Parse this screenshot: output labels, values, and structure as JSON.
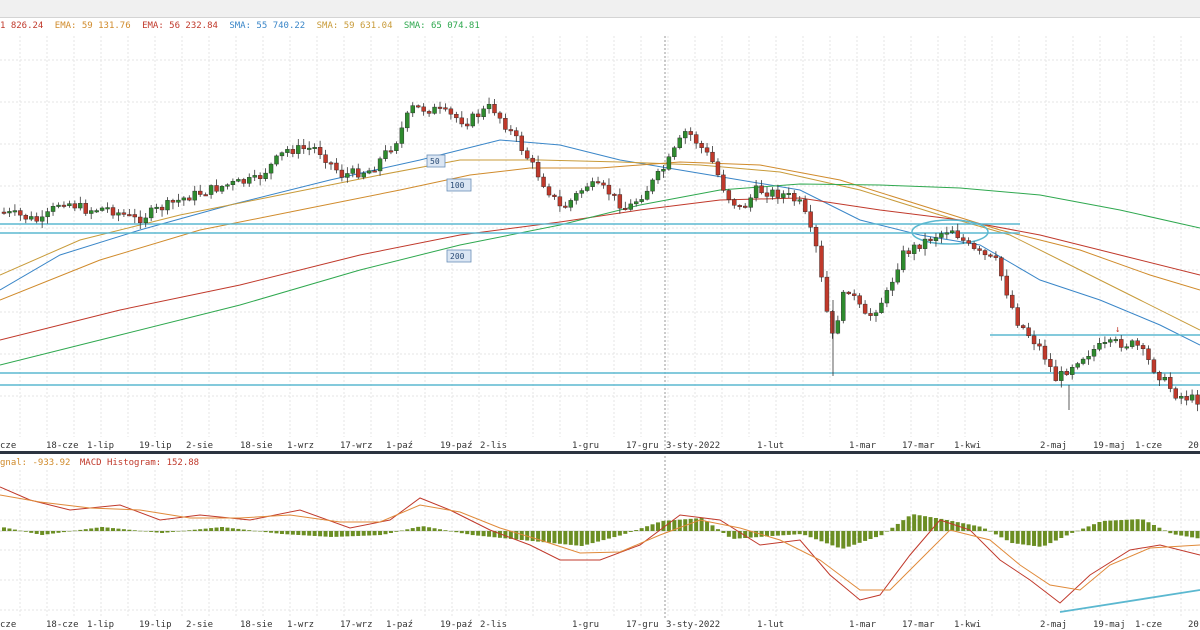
{
  "legend_top": [
    {
      "text": "1 826.24",
      "color": "#c0392b"
    },
    {
      "text": "EMA: 59 131.76",
      "color": "#d08b2c"
    },
    {
      "text": "EMA: 56 232.84",
      "color": "#c0392b"
    },
    {
      "text": "SMA: 55 740.22",
      "color": "#3a86c8"
    },
    {
      "text": "SMA: 59 631.04",
      "color": "#c89b3a"
    },
    {
      "text": "SMA: 65 074.81",
      "color": "#2fa84f"
    }
  ],
  "legend_macd": [
    {
      "text": "gnal: -933.92",
      "color": "#d08b2c"
    },
    {
      "text": "MACD Histogram: 152.88",
      "color": "#c0392b"
    }
  ],
  "ma_tags": [
    {
      "label": "50",
      "date_index": 104
    },
    {
      "label": "100",
      "date_index": 110
    },
    {
      "label": "200",
      "date_index": 110
    }
  ],
  "chart_data": {
    "type": "candlestick",
    "x_axis_labels": [
      "cze",
      "18-cze",
      "1-lip",
      "19-lip",
      "2-sie",
      "18-sie",
      "1-wrz",
      "17-wrz",
      "1-paź",
      "19-paź",
      "2-lis",
      "1-gru",
      "17-gru",
      "3-sty-2022",
      "1-lut",
      "1-mar",
      "17-mar",
      "1-kwi",
      "2-maj",
      "19-maj",
      "1-cze",
      "20"
    ],
    "x_axis_labels_macd": [
      "cze",
      "18-cze",
      "1-lip",
      "19-lip",
      "2-sie",
      "18-sie",
      "1-wrz",
      "17-wrz",
      "1-paź",
      "19-paź",
      "2-lis",
      "1-gru",
      "17-gru",
      "3-sty-2022",
      "1-lut",
      "1-mar",
      "17-mar",
      "1-kwi",
      "2-maj",
      "19-maj",
      "1-cze",
      "20"
    ],
    "grid": true,
    "panels": [
      "price",
      "macd"
    ]
  }
}
